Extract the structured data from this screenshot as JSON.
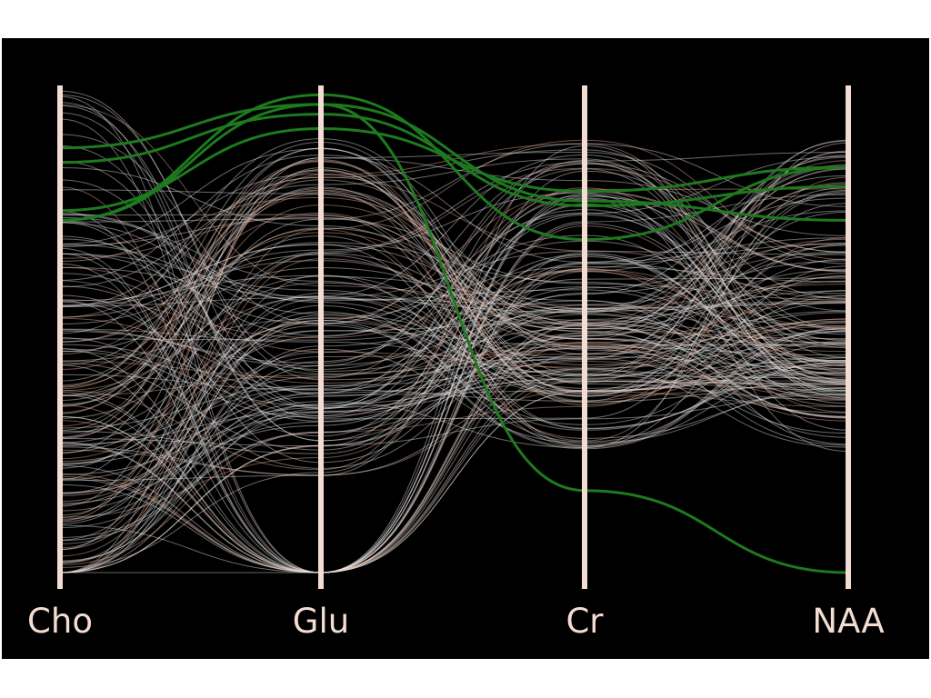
{
  "chart_data": {
    "type": "parallel-coordinates",
    "title": "",
    "axes": [
      "Cho",
      "Glu",
      "Cr",
      "NAA"
    ],
    "axis_range": [
      0,
      1
    ],
    "grid": false,
    "legend": "none",
    "colors": {
      "background": "#000000",
      "axis": "#f3ddd2",
      "background_lines": "#e6e6e6",
      "background_lines_tint": "#f0b49b",
      "highlight_lines": "#1e7a1e"
    },
    "background_line_count": 180,
    "highlighted": [
      {
        "values": [
          0.88,
          0.97,
          0.77,
          0.73
        ]
      },
      {
        "values": [
          0.85,
          0.95,
          0.76,
          0.8
        ]
      },
      {
        "values": [
          0.75,
          0.92,
          0.79,
          0.84
        ]
      },
      {
        "values": [
          0.73,
          0.99,
          0.69,
          0.84
        ]
      },
      {
        "values": [
          0.73,
          0.97,
          0.17,
          0.0
        ]
      }
    ]
  }
}
